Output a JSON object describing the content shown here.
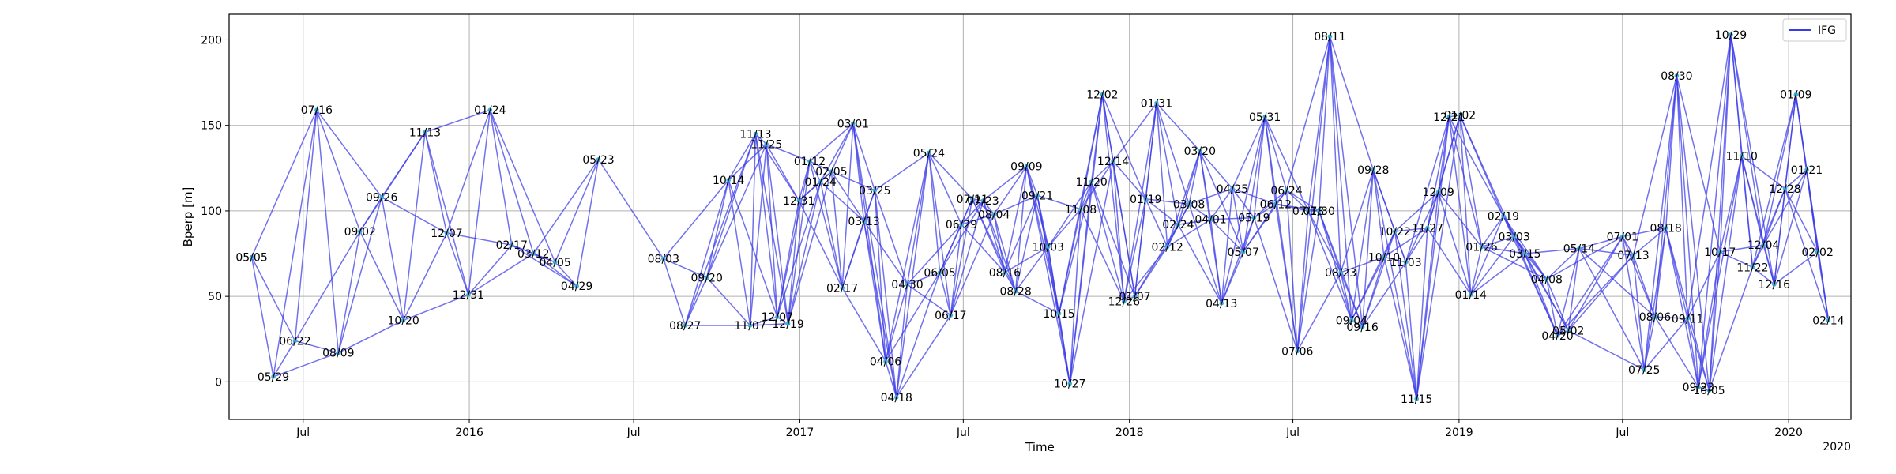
{
  "chart_data": {
    "type": "line",
    "xlabel": "Time",
    "ylabel": "Bperp [m]",
    "xlim": [
      "2015-04-10",
      "2020-03-10"
    ],
    "ylim": [
      -22,
      215
    ],
    "yticks": [
      0,
      50,
      100,
      150,
      200
    ],
    "xticks": [
      {
        "date": "2015-07-01",
        "label": "Jul"
      },
      {
        "date": "2016-01-01",
        "label": "2016"
      },
      {
        "date": "2016-07-01",
        "label": "Jul"
      },
      {
        "date": "2017-01-01",
        "label": "2017"
      },
      {
        "date": "2017-07-01",
        "label": "Jul"
      },
      {
        "date": "2018-01-01",
        "label": "2018"
      },
      {
        "date": "2018-07-01",
        "label": "Jul"
      },
      {
        "date": "2019-01-01",
        "label": "2019"
      },
      {
        "date": "2019-07-01",
        "label": "Jul"
      },
      {
        "date": "2020-01-01",
        "label": "2020"
      }
    ],
    "offset_label": "2020",
    "grid": true,
    "legend": {
      "position": "top-right",
      "entries": [
        "IFG"
      ]
    },
    "colors": {
      "line": "#3a3ae8",
      "marker": "#3fb0d8",
      "grid": "#b0b0b0"
    },
    "points": [
      {
        "date": "2015-05-05",
        "label": "05/05",
        "bperp": 73
      },
      {
        "date": "2015-05-29",
        "label": "05/29",
        "bperp": 3
      },
      {
        "date": "2015-06-22",
        "label": "06/22",
        "bperp": 24
      },
      {
        "date": "2015-07-16",
        "label": "07/16",
        "bperp": 159
      },
      {
        "date": "2015-08-09",
        "label": "08/09",
        "bperp": 17
      },
      {
        "date": "2015-09-02",
        "label": "09/02",
        "bperp": 88
      },
      {
        "date": "2015-09-26",
        "label": "09/26",
        "bperp": 108
      },
      {
        "date": "2015-10-20",
        "label": "10/20",
        "bperp": 36
      },
      {
        "date": "2015-11-13",
        "label": "11/13",
        "bperp": 146
      },
      {
        "date": "2015-12-07",
        "label": "12/07",
        "bperp": 87
      },
      {
        "date": "2015-12-31",
        "label": "12/31",
        "bperp": 51
      },
      {
        "date": "2016-01-24",
        "label": "01/24",
        "bperp": 159
      },
      {
        "date": "2016-02-17",
        "label": "02/17",
        "bperp": 80
      },
      {
        "date": "2016-03-12",
        "label": "03/12",
        "bperp": 75
      },
      {
        "date": "2016-04-05",
        "label": "04/05",
        "bperp": 70
      },
      {
        "date": "2016-04-29",
        "label": "04/29",
        "bperp": 56
      },
      {
        "date": "2016-05-23",
        "label": "05/23",
        "bperp": 130
      },
      {
        "date": "2016-08-03",
        "label": "08/03",
        "bperp": 72
      },
      {
        "date": "2016-08-27",
        "label": "08/27",
        "bperp": 33
      },
      {
        "date": "2016-09-20",
        "label": "09/20",
        "bperp": 61
      },
      {
        "date": "2016-10-14",
        "label": "10/14",
        "bperp": 118
      },
      {
        "date": "2016-11-07",
        "label": "11/07",
        "bperp": 33
      },
      {
        "date": "2016-11-13",
        "label": "11/13",
        "bperp": 145
      },
      {
        "date": "2016-11-25",
        "label": "11/25",
        "bperp": 139
      },
      {
        "date": "2016-12-07",
        "label": "12/07",
        "bperp": 38
      },
      {
        "date": "2016-12-19",
        "label": "12/19",
        "bperp": 34
      },
      {
        "date": "2016-12-31",
        "label": "12/31",
        "bperp": 106
      },
      {
        "date": "2017-01-12",
        "label": "01/12",
        "bperp": 129
      },
      {
        "date": "2017-01-24",
        "label": "01/24",
        "bperp": 117
      },
      {
        "date": "2017-02-05",
        "label": "02/05",
        "bperp": 123
      },
      {
        "date": "2017-02-17",
        "label": "02/17",
        "bperp": 55
      },
      {
        "date": "2017-03-01",
        "label": "03/01",
        "bperp": 151
      },
      {
        "date": "2017-03-13",
        "label": "03/13",
        "bperp": 94
      },
      {
        "date": "2017-03-25",
        "label": "03/25",
        "bperp": 112
      },
      {
        "date": "2017-04-06",
        "label": "04/06",
        "bperp": 12
      },
      {
        "date": "2017-04-18",
        "label": "04/18",
        "bperp": -9
      },
      {
        "date": "2017-04-30",
        "label": "04/30",
        "bperp": 57
      },
      {
        "date": "2017-05-24",
        "label": "05/24",
        "bperp": 134
      },
      {
        "date": "2017-06-05",
        "label": "06/05",
        "bperp": 64
      },
      {
        "date": "2017-06-17",
        "label": "06/17",
        "bperp": 39
      },
      {
        "date": "2017-06-29",
        "label": "06/29",
        "bperp": 92
      },
      {
        "date": "2017-07-11",
        "label": "07/11",
        "bperp": 107
      },
      {
        "date": "2017-07-23",
        "label": "07/23",
        "bperp": 106
      },
      {
        "date": "2017-08-04",
        "label": "08/04",
        "bperp": 98
      },
      {
        "date": "2017-08-16",
        "label": "08/16",
        "bperp": 64
      },
      {
        "date": "2017-08-28",
        "label": "08/28",
        "bperp": 53
      },
      {
        "date": "2017-09-09",
        "label": "09/09",
        "bperp": 126
      },
      {
        "date": "2017-09-21",
        "label": "09/21",
        "bperp": 109
      },
      {
        "date": "2017-10-03",
        "label": "10/03",
        "bperp": 79
      },
      {
        "date": "2017-10-15",
        "label": "10/15",
        "bperp": 40
      },
      {
        "date": "2017-10-27",
        "label": "10/27",
        "bperp": -1
      },
      {
        "date": "2017-11-08",
        "label": "11/08",
        "bperp": 101
      },
      {
        "date": "2017-11-20",
        "label": "11/20",
        "bperp": 117
      },
      {
        "date": "2017-12-02",
        "label": "12/02",
        "bperp": 168
      },
      {
        "date": "2017-12-14",
        "label": "12/14",
        "bperp": 129
      },
      {
        "date": "2017-12-26",
        "label": "12/26",
        "bperp": 47
      },
      {
        "date": "2018-01-07",
        "label": "01/07",
        "bperp": 50
      },
      {
        "date": "2018-01-19",
        "label": "01/19",
        "bperp": 107
      },
      {
        "date": "2018-01-31",
        "label": "01/31",
        "bperp": 163
      },
      {
        "date": "2018-02-12",
        "label": "02/12",
        "bperp": 79
      },
      {
        "date": "2018-02-24",
        "label": "02/24",
        "bperp": 92
      },
      {
        "date": "2018-03-08",
        "label": "03/08",
        "bperp": 104
      },
      {
        "date": "2018-03-20",
        "label": "03/20",
        "bperp": 135
      },
      {
        "date": "2018-04-01",
        "label": "04/01",
        "bperp": 95
      },
      {
        "date": "2018-04-13",
        "label": "04/13",
        "bperp": 46
      },
      {
        "date": "2018-04-25",
        "label": "04/25",
        "bperp": 113
      },
      {
        "date": "2018-05-07",
        "label": "05/07",
        "bperp": 76
      },
      {
        "date": "2018-05-19",
        "label": "05/19",
        "bperp": 96
      },
      {
        "date": "2018-05-31",
        "label": "05/31",
        "bperp": 155
      },
      {
        "date": "2018-06-12",
        "label": "06/12",
        "bperp": 104
      },
      {
        "date": "2018-06-24",
        "label": "06/24",
        "bperp": 112
      },
      {
        "date": "2018-07-06",
        "label": "07/06",
        "bperp": 18
      },
      {
        "date": "2018-07-18",
        "label": "07/18",
        "bperp": 100
      },
      {
        "date": "2018-07-30",
        "label": "07/30",
        "bperp": 100
      },
      {
        "date": "2018-08-11",
        "label": "08/11",
        "bperp": 202
      },
      {
        "date": "2018-08-23",
        "label": "08/23",
        "bperp": 64
      },
      {
        "date": "2018-09-04",
        "label": "09/04",
        "bperp": 36
      },
      {
        "date": "2018-09-16",
        "label": "09/16",
        "bperp": 32
      },
      {
        "date": "2018-09-28",
        "label": "09/28",
        "bperp": 124
      },
      {
        "date": "2018-10-10",
        "label": "10/10",
        "bperp": 73
      },
      {
        "date": "2018-10-22",
        "label": "10/22",
        "bperp": 88
      },
      {
        "date": "2018-11-03",
        "label": "11/03",
        "bperp": 70
      },
      {
        "date": "2018-11-15",
        "label": "11/15",
        "bperp": -10
      },
      {
        "date": "2018-11-27",
        "label": "11/27",
        "bperp": 90
      },
      {
        "date": "2018-12-09",
        "label": "12/09",
        "bperp": 111
      },
      {
        "date": "2018-12-21",
        "label": "12/21",
        "bperp": 155
      },
      {
        "date": "2019-01-02",
        "label": "01/02",
        "bperp": 156
      },
      {
        "date": "2019-01-14",
        "label": "01/14",
        "bperp": 51
      },
      {
        "date": "2019-01-26",
        "label": "01/26",
        "bperp": 79
      },
      {
        "date": "2019-02-19",
        "label": "02/19",
        "bperp": 97
      },
      {
        "date": "2019-03-03",
        "label": "03/03",
        "bperp": 85
      },
      {
        "date": "2019-03-15",
        "label": "03/15",
        "bperp": 75
      },
      {
        "date": "2019-04-08",
        "label": "04/08",
        "bperp": 60
      },
      {
        "date": "2019-04-20",
        "label": "04/20",
        "bperp": 27
      },
      {
        "date": "2019-05-02",
        "label": "05/02",
        "bperp": 30
      },
      {
        "date": "2019-05-14",
        "label": "05/14",
        "bperp": 78
      },
      {
        "date": "2019-07-01",
        "label": "07/01",
        "bperp": 85
      },
      {
        "date": "2019-07-13",
        "label": "07/13",
        "bperp": 74
      },
      {
        "date": "2019-07-25",
        "label": "07/25",
        "bperp": 7
      },
      {
        "date": "2019-08-06",
        "label": "08/06",
        "bperp": 38
      },
      {
        "date": "2019-08-18",
        "label": "08/18",
        "bperp": 90
      },
      {
        "date": "2019-08-30",
        "label": "08/30",
        "bperp": 179
      },
      {
        "date": "2019-09-11",
        "label": "09/11",
        "bperp": 37
      },
      {
        "date": "2019-09-23",
        "label": "09/23",
        "bperp": -3
      },
      {
        "date": "2019-10-05",
        "label": "10/05",
        "bperp": -5
      },
      {
        "date": "2019-10-17",
        "label": "10/17",
        "bperp": 76
      },
      {
        "date": "2019-10-29",
        "label": "10/29",
        "bperp": 203
      },
      {
        "date": "2019-11-10",
        "label": "11/10",
        "bperp": 132
      },
      {
        "date": "2019-11-22",
        "label": "11/22",
        "bperp": 67
      },
      {
        "date": "2019-12-04",
        "label": "12/04",
        "bperp": 80
      },
      {
        "date": "2019-12-16",
        "label": "12/16",
        "bperp": 57
      },
      {
        "date": "2019-12-28",
        "label": "12/28",
        "bperp": 113
      },
      {
        "date": "2020-01-09",
        "label": "01/09",
        "bperp": 168
      },
      {
        "date": "2020-01-21",
        "label": "01/21",
        "bperp": 124
      },
      {
        "date": "2020-02-02",
        "label": "02/02",
        "bperp": 76
      },
      {
        "date": "2020-02-14",
        "label": "02/14",
        "bperp": 36
      }
    ]
  }
}
